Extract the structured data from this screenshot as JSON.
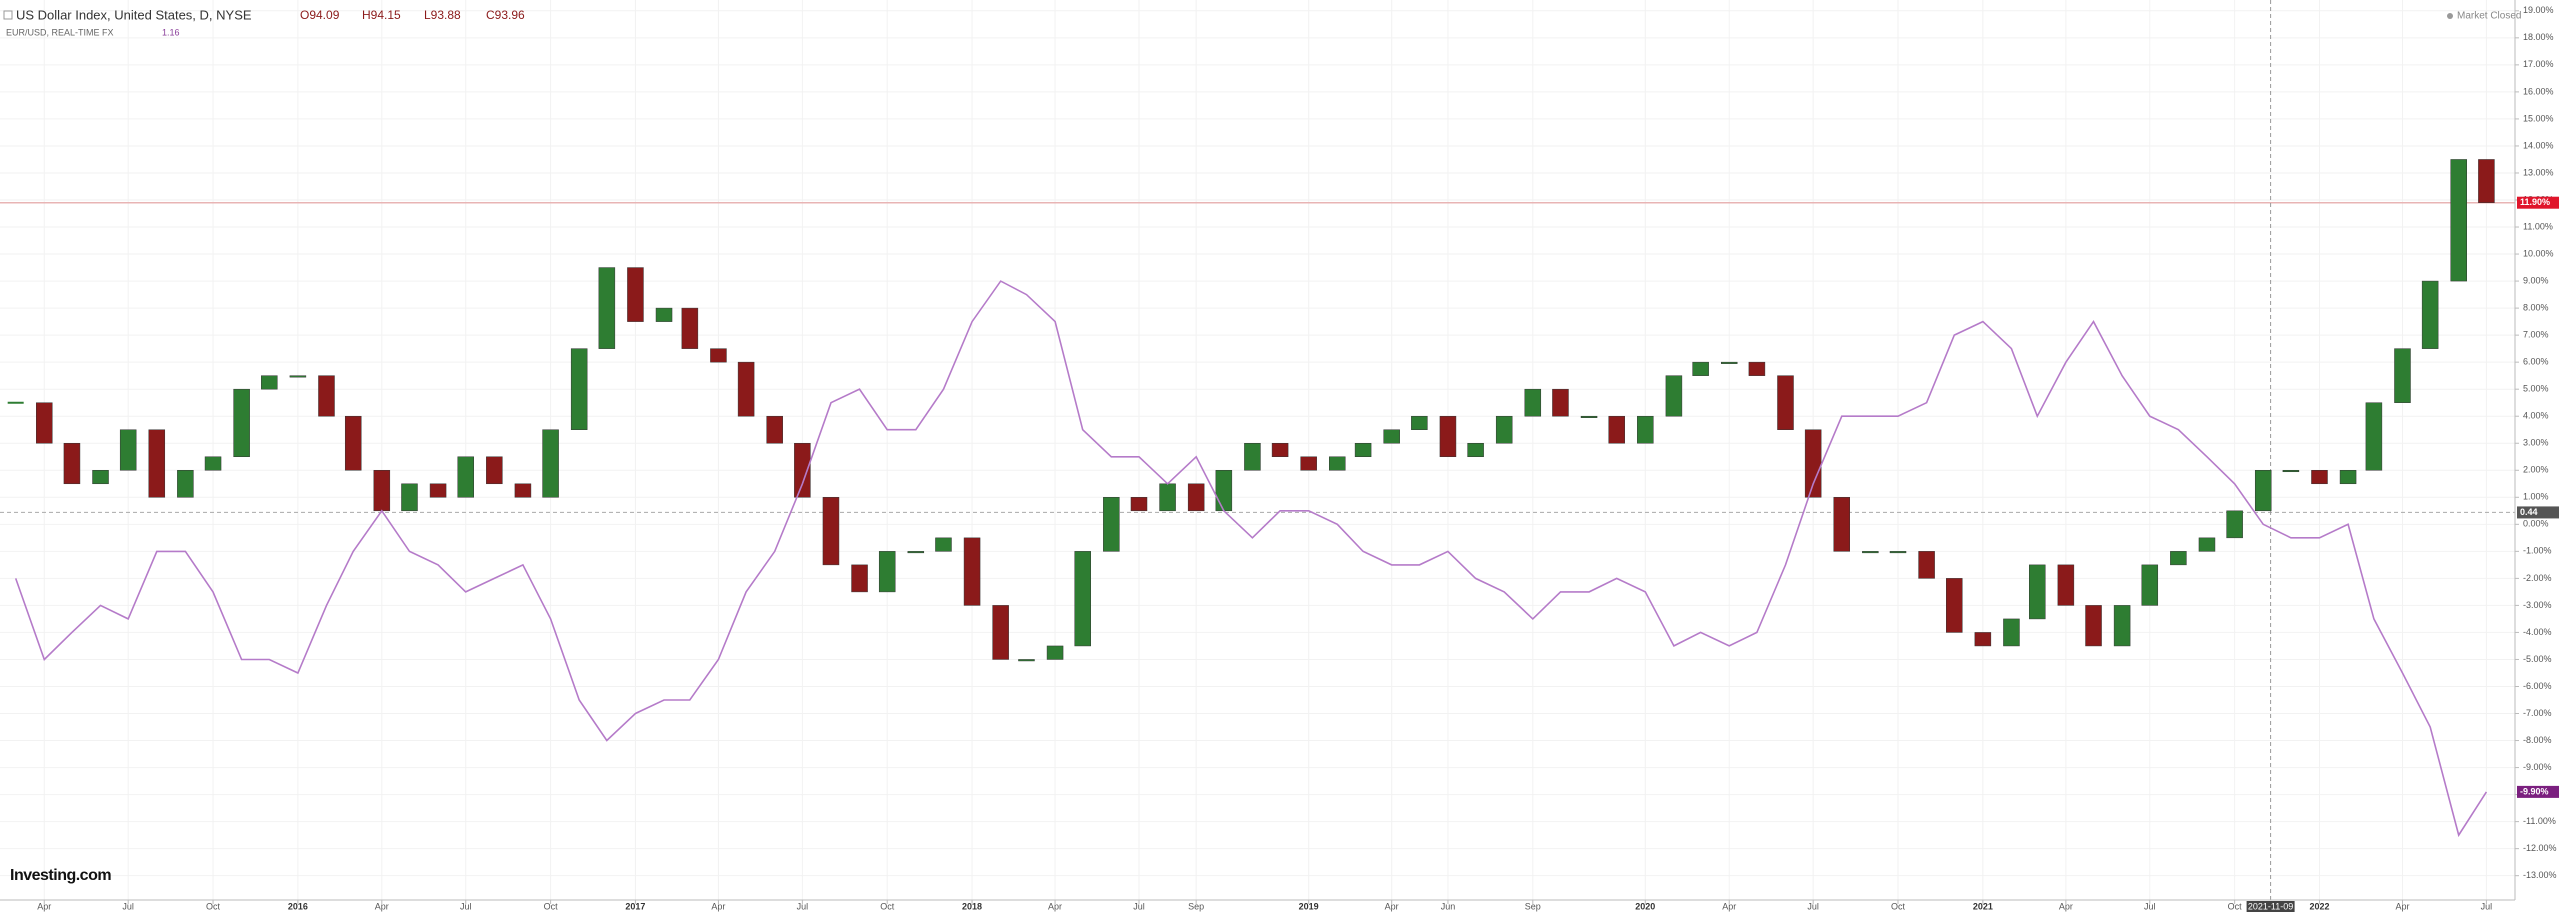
{
  "chart_data": {
    "type": "candlestick",
    "status": "Market Closed",
    "brand": "Investing.com",
    "ohlc": [
      "O94.09",
      "H94.15",
      "L93.88",
      "C93.96"
    ],
    "last_value": "1.16",
    "x": [
      "2015-03",
      "2015-04",
      "2015-05",
      "2015-06",
      "2015-07",
      "2015-08",
      "2015-09",
      "2015-10",
      "2015-11",
      "2015-12",
      "2016-01",
      "2016-02",
      "2016-03",
      "2016-04",
      "2016-05",
      "2016-06",
      "2016-07",
      "2016-08",
      "2016-09",
      "2016-10",
      "2016-11",
      "2016-12",
      "2017-01",
      "2017-02",
      "2017-03",
      "2017-04",
      "2017-05",
      "2017-06",
      "2017-07",
      "2017-08",
      "2017-09",
      "2017-10",
      "2017-11",
      "2017-12",
      "2018-01",
      "2018-02",
      "2018-03",
      "2018-04",
      "2018-05",
      "2018-06",
      "2018-07",
      "2018-08",
      "2018-09",
      "2018-10",
      "2018-11",
      "2018-12",
      "2019-01",
      "2019-02",
      "2019-03",
      "2019-04",
      "2019-05",
      "2019-06",
      "2019-07",
      "2019-08",
      "2019-09",
      "2019-10",
      "2019-11",
      "2019-12",
      "2020-01",
      "2020-02",
      "2020-03",
      "2020-04",
      "2020-05",
      "2020-06",
      "2020-07",
      "2020-08",
      "2020-09",
      "2020-10",
      "2020-11",
      "2020-12",
      "2021-01",
      "2021-02",
      "2021-03",
      "2021-04",
      "2021-05",
      "2021-06",
      "2021-07",
      "2021-08",
      "2021-09",
      "2021-10",
      "2021-11",
      "2021-12",
      "2022-01",
      "2022-02",
      "2022-03",
      "2022-04",
      "2022-05",
      "2022-06",
      "2022-07"
    ],
    "series": [
      {
        "name": "US Dollar Index, United States, D, NYSE",
        "type": "candlestick",
        "up_color": "#2e7d32",
        "down_color": "#8b1a1a",
        "values": [
          4.5,
          3.0,
          1.5,
          2.0,
          3.5,
          1.0,
          2.0,
          2.5,
          5.0,
          5.5,
          5.5,
          4.0,
          2.0,
          0.5,
          1.5,
          1.0,
          2.5,
          1.5,
          1.0,
          3.5,
          6.5,
          9.5,
          7.5,
          8.0,
          6.5,
          6.0,
          4.0,
          3.0,
          1.0,
          -1.5,
          -2.5,
          -1.0,
          -1.0,
          -0.5,
          -3.0,
          -5.0,
          -5.0,
          -4.5,
          -1.0,
          1.0,
          0.5,
          1.5,
          0.5,
          2.0,
          3.0,
          2.5,
          2.0,
          2.5,
          3.0,
          3.5,
          4.0,
          2.5,
          3.0,
          4.0,
          5.0,
          4.0,
          4.0,
          3.0,
          4.0,
          5.5,
          6.0,
          6.0,
          5.5,
          3.5,
          1.0,
          -1.0,
          -1.0,
          -1.0,
          -2.0,
          -4.0,
          -4.5,
          -3.5,
          -1.5,
          -3.0,
          -4.5,
          -3.0,
          -1.5,
          -1.0,
          -0.5,
          0.5,
          2.0,
          2.0,
          1.5,
          2.0,
          4.5,
          6.5,
          9.0,
          13.5,
          11.9
        ]
      },
      {
        "name": "EUR/USD, REAL-TIME FX",
        "type": "line",
        "color": "#b57bc9",
        "values": [
          -2,
          -5,
          -4,
          -3,
          -3.5,
          -1,
          -1,
          -2.5,
          -5,
          -5,
          -5.5,
          -3,
          -1,
          0.5,
          -1,
          -1.5,
          -2.5,
          -2,
          -1.5,
          -3.5,
          -6.5,
          -8,
          -7,
          -6.5,
          -6.5,
          -5,
          -2.5,
          -1,
          1.5,
          4.5,
          5,
          3.5,
          3.5,
          5,
          7.5,
          9,
          8.5,
          7.5,
          3.5,
          2.5,
          2.5,
          1.5,
          2.5,
          0.5,
          -0.5,
          0.5,
          0.5,
          0,
          -1,
          -1.5,
          -1.5,
          -1,
          -2,
          -2.5,
          -3.5,
          -2.5,
          -2.5,
          -2,
          -2.5,
          -4.5,
          -4,
          -4.5,
          -4,
          -1.5,
          1.5,
          4,
          4,
          4,
          4.5,
          7,
          7.5,
          6.5,
          4,
          6,
          7.5,
          5.5,
          4,
          3.5,
          2.5,
          1.5,
          0,
          -0.5,
          -0.5,
          0,
          -3.5,
          -5.5,
          -7.5,
          -11.5,
          -9.9
        ]
      }
    ],
    "xlim": [
      "2015-02-12",
      "2022-08-01"
    ],
    "xticks": [
      {
        "value": "2015-04",
        "label": "Apr"
      },
      {
        "value": "2015-07",
        "label": "Jul"
      },
      {
        "value": "2015-10",
        "label": "Oct"
      },
      {
        "value": "2016-01",
        "label": "2016"
      },
      {
        "value": "2016-04",
        "label": "Apr"
      },
      {
        "value": "2016-07",
        "label": "Jul"
      },
      {
        "value": "2016-10",
        "label": "Oct"
      },
      {
        "value": "2017-01",
        "label": "2017"
      },
      {
        "value": "2017-04",
        "label": "Apr"
      },
      {
        "value": "2017-07",
        "label": "Jul"
      },
      {
        "value": "2017-10",
        "label": "Oct"
      },
      {
        "value": "2018-01",
        "label": "2018"
      },
      {
        "value": "2018-04",
        "label": "Apr"
      },
      {
        "value": "2018-07",
        "label": "Jul"
      },
      {
        "value": "2018-09",
        "label": "Sep"
      },
      {
        "value": "2019-01",
        "label": "2019"
      },
      {
        "value": "2019-04",
        "label": "Apr"
      },
      {
        "value": "2019-06",
        "label": "Jun"
      },
      {
        "value": "2019-09",
        "label": "Sep"
      },
      {
        "value": "2020-01",
        "label": "2020"
      },
      {
        "value": "2020-04",
        "label": "Apr"
      },
      {
        "value": "2020-07",
        "label": "Jul"
      },
      {
        "value": "2020-10",
        "label": "Oct"
      },
      {
        "value": "2021-01",
        "label": "2021"
      },
      {
        "value": "2021-04",
        "label": "Apr"
      },
      {
        "value": "2021-07",
        "label": "Jul"
      },
      {
        "value": "2021-10",
        "label": "Oct"
      },
      {
        "value": "2022-01",
        "label": "2022"
      },
      {
        "value": "2022-04",
        "label": "Apr"
      },
      {
        "value": "2022-07",
        "label": "Jul"
      }
    ],
    "ylim": [
      -13.9,
      19.4
    ],
    "yticks": [
      {
        "value": 19,
        "label": "19.00%"
      },
      {
        "value": 18,
        "label": "18.00%"
      },
      {
        "value": 17,
        "label": "17.00%"
      },
      {
        "value": 16,
        "label": "16.00%"
      },
      {
        "value": 15,
        "label": "15.00%"
      },
      {
        "value": 14,
        "label": "14.00%"
      },
      {
        "value": 13,
        "label": "13.00%"
      },
      {
        "value": 12,
        "label": "12.00%"
      },
      {
        "value": 11,
        "label": "11.00%"
      },
      {
        "value": 10,
        "label": "10.00%"
      },
      {
        "value": 9,
        "label": "9.00%"
      },
      {
        "value": 8,
        "label": "8.00%"
      },
      {
        "value": 7,
        "label": "7.00%"
      },
      {
        "value": 6,
        "label": "6.00%"
      },
      {
        "value": 5,
        "label": "5.00%"
      },
      {
        "value": 4,
        "label": "4.00%"
      },
      {
        "value": 3,
        "label": "3.00%"
      },
      {
        "value": 2,
        "label": "2.00%"
      },
      {
        "value": 1,
        "label": "1.00%"
      },
      {
        "value": 0,
        "label": "0.00%"
      },
      {
        "value": -1,
        "label": "-1.00%"
      },
      {
        "value": -2,
        "label": "-2.00%"
      },
      {
        "value": -3,
        "label": "-3.00%"
      },
      {
        "value": -4,
        "label": "-4.00%"
      },
      {
        "value": -5,
        "label": "-5.00%"
      },
      {
        "value": -6,
        "label": "-6.00%"
      },
      {
        "value": -7,
        "label": "-7.00%"
      },
      {
        "value": -8,
        "label": "-8.00%"
      },
      {
        "value": -9,
        "label": "-9.00%"
      },
      {
        "value": -10,
        "label": "-10.00%"
      },
      {
        "value": -11,
        "label": "-11.00%"
      },
      {
        "value": -12,
        "label": "-12.00%"
      },
      {
        "value": -13,
        "label": "-13.00%"
      }
    ],
    "grid": true,
    "price_lines": [
      {
        "value": 11.9,
        "label": "11.90%",
        "color": "#e0152b",
        "line": "solid"
      },
      {
        "value": 0.44,
        "label": "0.44",
        "color": "#555555",
        "line": "dashed"
      },
      {
        "value": -9.9,
        "label": "-9.90%",
        "color": "#7b1f7f",
        "line": "none"
      }
    ],
    "crosshair": "2021-11-09"
  }
}
